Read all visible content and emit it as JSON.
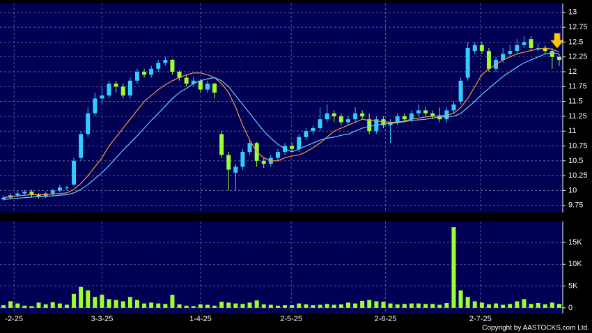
{
  "chart_data": [
    {
      "type": "candlestick",
      "x": [
        1,
        2,
        3,
        4,
        5,
        6,
        7,
        8,
        9,
        10,
        11,
        12,
        13,
        14,
        15,
        16,
        17,
        18,
        19,
        20,
        21,
        22,
        23,
        24,
        25,
        26,
        27,
        28,
        29,
        30,
        31,
        32,
        33,
        34,
        35,
        36,
        37,
        38,
        39,
        40,
        41,
        42,
        43,
        44,
        45,
        46,
        47,
        48,
        49,
        50,
        51,
        52,
        53,
        54,
        55,
        56,
        57,
        58,
        59,
        60,
        61,
        62,
        63,
        64,
        65,
        66,
        67,
        68,
        69,
        70,
        71,
        72,
        73,
        74,
        75,
        76,
        77,
        78,
        79,
        80
      ],
      "open": [
        9.85,
        9.88,
        9.92,
        9.95,
        9.98,
        9.93,
        9.9,
        9.95,
        10.0,
        10.05,
        10.1,
        10.55,
        10.95,
        11.3,
        11.55,
        11.6,
        11.8,
        11.75,
        11.6,
        11.85,
        12.0,
        11.95,
        12.05,
        12.15,
        12.2,
        12.0,
        11.9,
        11.8,
        11.85,
        11.7,
        11.8,
        10.95,
        10.6,
        10.3,
        10.4,
        10.65,
        10.8,
        10.5,
        10.45,
        10.55,
        10.65,
        10.75,
        10.7,
        10.9,
        11.0,
        11.05,
        11.2,
        11.3,
        11.25,
        11.15,
        11.2,
        11.3,
        11.2,
        11.0,
        11.2,
        11.1,
        11.15,
        11.25,
        11.2,
        11.3,
        11.35,
        11.3,
        11.25,
        11.2,
        11.35,
        11.5,
        11.9,
        12.35,
        12.45,
        12.35,
        12.05,
        12.2,
        12.3,
        12.35,
        12.45,
        12.55,
        12.4,
        12.4,
        12.35,
        12.25
      ],
      "high": [
        9.92,
        9.96,
        9.99,
        10.01,
        10.01,
        9.96,
        9.98,
        10.03,
        10.1,
        10.08,
        10.55,
        11.0,
        11.4,
        11.65,
        11.75,
        11.85,
        11.85,
        11.8,
        11.9,
        12.05,
        12.05,
        12.1,
        12.2,
        12.25,
        12.22,
        12.02,
        11.95,
        11.92,
        11.88,
        11.85,
        11.82,
        11.0,
        10.65,
        10.45,
        10.7,
        10.85,
        10.82,
        10.55,
        10.6,
        10.7,
        10.8,
        10.8,
        10.95,
        11.05,
        11.1,
        11.4,
        11.45,
        11.35,
        11.3,
        11.25,
        11.4,
        11.35,
        11.3,
        11.25,
        11.25,
        11.2,
        11.3,
        11.3,
        11.35,
        11.45,
        11.4,
        11.35,
        11.4,
        11.4,
        11.5,
        11.9,
        12.5,
        12.5,
        12.5,
        12.4,
        12.25,
        12.4,
        12.45,
        12.55,
        12.6,
        12.6,
        12.48,
        12.45,
        12.4,
        12.3
      ],
      "low": [
        9.82,
        9.85,
        9.88,
        9.92,
        9.88,
        9.86,
        9.87,
        9.92,
        9.97,
        10.0,
        10.08,
        10.5,
        10.9,
        11.25,
        11.45,
        11.55,
        11.65,
        11.55,
        11.55,
        11.8,
        11.9,
        11.9,
        12.0,
        12.1,
        11.95,
        11.85,
        11.75,
        11.75,
        11.65,
        11.65,
        11.55,
        10.55,
        10.0,
        10.0,
        10.35,
        10.6,
        10.4,
        10.38,
        10.4,
        10.5,
        10.6,
        10.65,
        10.65,
        10.85,
        10.95,
        11.0,
        11.15,
        11.15,
        11.1,
        11.1,
        11.15,
        11.2,
        10.95,
        10.95,
        11.05,
        10.8,
        11.1,
        11.15,
        11.15,
        11.25,
        11.25,
        11.2,
        11.15,
        11.15,
        11.3,
        11.45,
        11.85,
        12.3,
        12.3,
        12.0,
        12.0,
        12.15,
        12.25,
        12.3,
        12.4,
        12.35,
        12.35,
        12.3,
        12.05,
        12.1
      ],
      "close": [
        9.88,
        9.92,
        9.95,
        9.98,
        9.93,
        9.9,
        9.95,
        10.0,
        10.05,
        10.05,
        10.5,
        10.95,
        11.3,
        11.55,
        11.6,
        11.8,
        11.75,
        11.6,
        11.85,
        12.0,
        11.95,
        12.05,
        12.15,
        12.2,
        12.0,
        11.9,
        11.8,
        11.85,
        11.7,
        11.8,
        11.65,
        10.6,
        10.35,
        10.4,
        10.65,
        10.8,
        10.5,
        10.45,
        10.55,
        10.65,
        10.75,
        10.7,
        10.9,
        11.0,
        11.05,
        11.2,
        11.3,
        11.25,
        11.15,
        11.2,
        11.3,
        11.25,
        11.0,
        11.2,
        11.1,
        11.15,
        11.25,
        11.2,
        11.3,
        11.35,
        11.3,
        11.25,
        11.2,
        11.35,
        11.45,
        11.85,
        12.4,
        12.45,
        12.35,
        12.05,
        12.2,
        12.3,
        12.35,
        12.45,
        12.5,
        12.4,
        12.4,
        12.35,
        12.25,
        12.2
      ],
      "up_color": "#33ccff",
      "down_color": "#99ff33",
      "series": [
        {
          "color": "#ff9933",
          "values": [
            9.88,
            9.9,
            9.91,
            9.92,
            9.93,
            9.93,
            9.93,
            9.94,
            9.95,
            9.96,
            10.02,
            10.12,
            10.25,
            10.4,
            10.55,
            10.75,
            10.9,
            11.05,
            11.2,
            11.35,
            11.5,
            11.6,
            11.7,
            11.78,
            11.85,
            11.9,
            11.95,
            11.98,
            11.98,
            11.95,
            11.9,
            11.8,
            11.65,
            11.4,
            11.1,
            10.85,
            10.65,
            10.55,
            10.5,
            10.5,
            10.55,
            10.58,
            10.6,
            10.65,
            10.72,
            10.8,
            10.9,
            11.0,
            11.05,
            11.1,
            11.15,
            11.2,
            11.18,
            11.17,
            11.16,
            11.15,
            11.15,
            11.17,
            11.2,
            11.22,
            11.24,
            11.25,
            11.26,
            11.27,
            11.3,
            11.4,
            11.55,
            11.75,
            11.95,
            12.05,
            12.12,
            12.2,
            12.25,
            12.3,
            12.33,
            12.36,
            12.38,
            12.4,
            12.38,
            12.33
          ]
        },
        {
          "color": "#66ccff",
          "values": [
            9.85,
            9.86,
            9.87,
            9.88,
            9.89,
            9.9,
            9.9,
            9.91,
            9.92,
            9.93,
            9.96,
            10.02,
            10.1,
            10.2,
            10.3,
            10.42,
            10.55,
            10.68,
            10.8,
            10.92,
            11.05,
            11.18,
            11.3,
            11.42,
            11.55,
            11.65,
            11.72,
            11.8,
            11.85,
            11.88,
            11.9,
            11.85,
            11.75,
            11.6,
            11.45,
            11.3,
            11.15,
            11.0,
            10.88,
            10.78,
            10.7,
            10.65,
            10.7,
            10.75,
            10.8,
            10.85,
            10.88,
            10.9,
            10.93,
            10.95,
            11.0,
            11.05,
            11.08,
            11.1,
            11.12,
            11.13,
            11.14,
            11.16,
            11.18,
            11.19,
            11.2,
            11.22,
            11.24,
            11.24,
            11.25,
            11.3,
            11.4,
            11.5,
            11.62,
            11.72,
            11.82,
            11.92,
            12.0,
            12.08,
            12.15,
            12.2,
            12.25,
            12.3,
            12.32,
            12.3
          ]
        }
      ],
      "xlim": [
        0.5,
        80.5
      ],
      "ylim": [
        9.63,
        13.15
      ],
      "yticks": [
        9.75,
        10,
        10.25,
        10.5,
        10.75,
        11,
        11.25,
        11.5,
        11.75,
        12,
        12.25,
        12.5,
        12.75,
        13
      ],
      "grid": true
    },
    {
      "type": "bar",
      "values": [
        600,
        1500,
        1000,
        500,
        400,
        1200,
        800,
        1300,
        1000,
        700,
        3200,
        4800,
        4000,
        2500,
        3000,
        2000,
        1800,
        1500,
        2500,
        1800,
        1000,
        1200,
        1000,
        900,
        3000,
        800,
        500,
        400,
        800,
        700,
        500,
        1400,
        1200,
        1000,
        900,
        1200,
        1700,
        800,
        700,
        500,
        600,
        600,
        1000,
        800,
        600,
        700,
        900,
        700,
        800,
        1200,
        1000,
        1600,
        1800,
        1500,
        1400,
        1000,
        800,
        900,
        1000,
        1000,
        900,
        900,
        700,
        1100,
        18500,
        4000,
        2500,
        1500,
        1200,
        800,
        1000,
        700,
        900,
        1500,
        2000,
        900,
        1100,
        800,
        1200,
        900
      ],
      "color": "#99ff33",
      "xlim": [
        0.5,
        80.5
      ],
      "xticks": [
        {
          "value": 2.5,
          "label": "-2-25"
        },
        {
          "value": 15,
          "label": "3-3-25"
        },
        {
          "value": 29,
          "label": "1-4-25"
        },
        {
          "value": 41.9,
          "label": "2-5-25"
        },
        {
          "value": 55.3,
          "label": "2-6-25"
        },
        {
          "value": 68.8,
          "label": "2-7-25"
        }
      ],
      "ylim": [
        -1300,
        19800
      ],
      "yticks": [
        0,
        {
          "value": 5000,
          "label": "5K"
        },
        {
          "value": 10000,
          "label": "10K"
        },
        {
          "value": 15000,
          "label": "15K"
        }
      ],
      "grid": true,
      "copyright": "Copyright by AASTOCKS.com Ltd."
    }
  ]
}
